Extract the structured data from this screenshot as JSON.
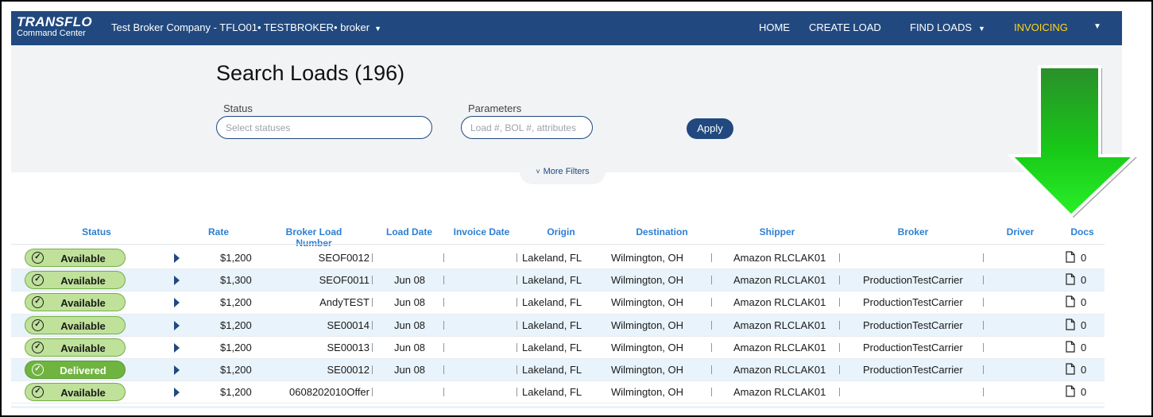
{
  "navbar": {
    "logo_main": "TRANSFLO",
    "logo_sub": "Command Center",
    "company": "Test Broker Company - TFLO01• TESTBROKER• broker",
    "items": [
      {
        "label": "HOME"
      },
      {
        "label": "CREATE LOAD"
      },
      {
        "label": "FIND LOADS"
      },
      {
        "label": "INVOICING"
      }
    ],
    "accent_color": "#ffd41f",
    "bar_color": "#21497f"
  },
  "search": {
    "title": "Search Loads (196)",
    "status_label": "Status",
    "status_placeholder": "Select statuses",
    "parameters_label": "Parameters",
    "parameters_placeholder": "Load #, BOL #, attributes",
    "apply_label": "Apply",
    "more_filters_label": "More Filters"
  },
  "table": {
    "columns": [
      "Status",
      "Rate",
      "Broker Load Number",
      "Load Date",
      "Invoice Date",
      "Origin",
      "Destination",
      "Shipper",
      "Broker",
      "Driver",
      "Docs"
    ],
    "rows": [
      {
        "status": "Available",
        "rate": "$1,200",
        "load_number": "SEOF0012",
        "load_date": "",
        "invoice_date": "",
        "origin": "Lakeland, FL",
        "destination": "Wilmington, OH",
        "shipper": "Amazon RLCLAK01",
        "broker": "",
        "driver": "",
        "docs": "0"
      },
      {
        "status": "Available",
        "rate": "$1,300",
        "load_number": "SEOF0011",
        "load_date": "Jun 08",
        "invoice_date": "",
        "origin": "Lakeland, FL",
        "destination": "Wilmington, OH",
        "shipper": "Amazon RLCLAK01",
        "broker": "ProductionTestCarrier",
        "driver": "",
        "docs": "0"
      },
      {
        "status": "Available",
        "rate": "$1,200",
        "load_number": "AndyTEST",
        "load_date": "Jun 08",
        "invoice_date": "",
        "origin": "Lakeland, FL",
        "destination": "Wilmington, OH",
        "shipper": "Amazon RLCLAK01",
        "broker": "ProductionTestCarrier",
        "driver": "",
        "docs": "0"
      },
      {
        "status": "Available",
        "rate": "$1,200",
        "load_number": "SE00014",
        "load_date": "Jun 08",
        "invoice_date": "",
        "origin": "Lakeland, FL",
        "destination": "Wilmington, OH",
        "shipper": "Amazon RLCLAK01",
        "broker": "ProductionTestCarrier",
        "driver": "",
        "docs": "0"
      },
      {
        "status": "Available",
        "rate": "$1,200",
        "load_number": "SE00013",
        "load_date": "Jun 08",
        "invoice_date": "",
        "origin": "Lakeland, FL",
        "destination": "Wilmington, OH",
        "shipper": "Amazon RLCLAK01",
        "broker": "ProductionTestCarrier",
        "driver": "",
        "docs": "0"
      },
      {
        "status": "Delivered",
        "rate": "$1,200",
        "load_number": "SE00012",
        "load_date": "Jun 08",
        "invoice_date": "",
        "origin": "Lakeland, FL",
        "destination": "Wilmington, OH",
        "shipper": "Amazon RLCLAK01",
        "broker": "ProductionTestCarrier",
        "driver": "",
        "docs": "0"
      },
      {
        "status": "Available",
        "rate": "$1,200",
        "load_number": "0608202010Offer",
        "load_date": "",
        "invoice_date": "",
        "origin": "Lakeland, FL",
        "destination": "Wilmington, OH",
        "shipper": "Amazon RLCLAK01",
        "broker": "",
        "driver": "",
        "docs": "0"
      }
    ],
    "status_colors": {
      "Available": "#bfe19a",
      "Delivered": "#6fb43f"
    }
  },
  "annotation": {
    "arrow_color": "#1ed61e"
  }
}
